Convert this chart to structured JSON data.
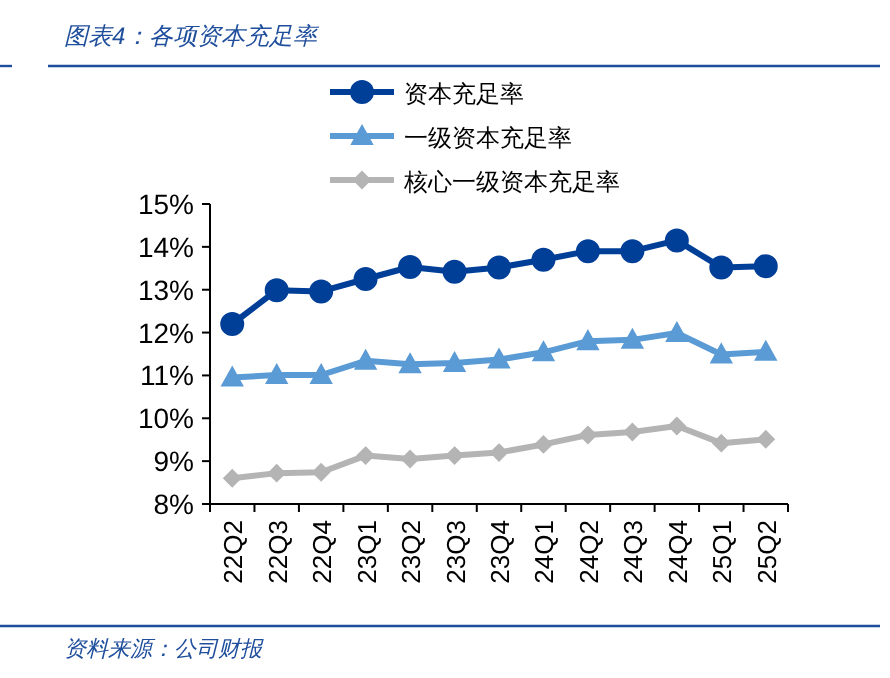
{
  "chart_data": {
    "type": "line",
    "title": "图表4：各项资本充足率",
    "categories": [
      "22Q2",
      "22Q3",
      "22Q4",
      "23Q1",
      "23Q2",
      "23Q3",
      "23Q4",
      "24Q1",
      "24Q2",
      "24Q3",
      "24Q4",
      "25Q1",
      "25Q2"
    ],
    "series": [
      {
        "name": "资本充足率",
        "color": "#003f98",
        "marker": "circle",
        "values": [
          12.2,
          12.99,
          12.96,
          13.25,
          13.53,
          13.42,
          13.52,
          13.7,
          13.9,
          13.9,
          14.15,
          13.52,
          13.55
        ]
      },
      {
        "name": "一级资本充足率",
        "color": "#5b9bd5",
        "marker": "triangle",
        "values": [
          10.95,
          11.01,
          11.01,
          11.34,
          11.26,
          11.29,
          11.37,
          11.54,
          11.8,
          11.83,
          11.99,
          11.49,
          11.55
        ]
      },
      {
        "name": "核心一级资本充足率",
        "color": "#b4b4b4",
        "marker": "diamond",
        "values": [
          8.6,
          8.72,
          8.74,
          9.13,
          9.05,
          9.13,
          9.2,
          9.39,
          9.61,
          9.68,
          9.82,
          9.42,
          9.51
        ]
      }
    ],
    "ylim": [
      8,
      15
    ],
    "yticks": [
      {
        "value": 8,
        "label": "8%"
      },
      {
        "value": 9,
        "label": "9%"
      },
      {
        "value": 10,
        "label": "10%"
      },
      {
        "value": 11,
        "label": "11%"
      },
      {
        "value": 12,
        "label": "12%"
      },
      {
        "value": 13,
        "label": "13%"
      },
      {
        "value": 14,
        "label": "14%"
      },
      {
        "value": 15,
        "label": "15%"
      }
    ],
    "legend": "top",
    "annotations": [
      "资料来源：公司财报"
    ]
  }
}
